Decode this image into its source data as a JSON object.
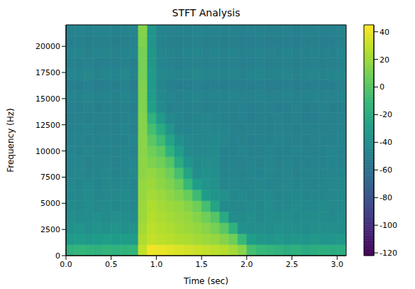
{
  "chart_data": {
    "type": "heatmap",
    "title": "STFT Analysis",
    "x_label": "Time (sec)",
    "y_label": "Frequency (Hz)",
    "xlim": [
      0,
      3.1
    ],
    "xticks": [
      {
        "value": 0,
        "label": "0.0"
      },
      0.5,
      {
        "value": 1,
        "label": "1.0"
      },
      1.5,
      {
        "value": 2,
        "label": "2.0"
      },
      2.5,
      {
        "value": 3,
        "label": "3.0"
      }
    ],
    "ylim": [
      0,
      22050
    ],
    "yticks": [
      0,
      2500,
      5000,
      7500,
      10000,
      12500,
      15000,
      17500,
      20000
    ],
    "x_bins": [
      0,
      0.1,
      0.2,
      0.3,
      0.4,
      0.5,
      0.6,
      0.7,
      0.8,
      0.9,
      1.0,
      1.1,
      1.2,
      1.3,
      1.4,
      1.5,
      1.6,
      1.7,
      1.8,
      1.9,
      2.0,
      2.1,
      2.2,
      2.3,
      2.4,
      2.5,
      2.6,
      2.7,
      2.8,
      2.9,
      3.0,
      3.1
    ],
    "y_bins": [
      0,
      1050,
      2100,
      3150,
      4200,
      5250,
      6300,
      7350,
      8400,
      9450,
      10500,
      11550,
      12600,
      13650,
      14700,
      15750,
      16800,
      17850,
      18900,
      19950,
      21000,
      22050
    ],
    "cells": [
      [
        -15,
        -12,
        -14,
        -16,
        -13,
        -15,
        -14,
        -12,
        30,
        42,
        40,
        38,
        36,
        34,
        32,
        30,
        28,
        26,
        22,
        15,
        -5,
        -10,
        -12,
        -15,
        -18,
        -16,
        -20,
        -18,
        -17,
        -19,
        -18
      ],
      [
        -32,
        -30,
        -33,
        -31,
        -29,
        -32,
        -30,
        -31,
        25,
        30,
        28,
        27,
        25,
        24,
        22,
        20,
        18,
        14,
        8,
        -10,
        -30,
        -34,
        -35,
        -33,
        -36,
        -34,
        -35,
        -33,
        -36,
        -35,
        -34
      ],
      [
        -38,
        -36,
        -39,
        -37,
        -38,
        -36,
        -38,
        -37,
        22,
        28,
        26,
        24,
        22,
        20,
        18,
        15,
        10,
        2,
        -15,
        -38,
        -40,
        -39,
        -41,
        -38,
        -40,
        -39,
        -41,
        -40,
        -39,
        -40,
        -41
      ],
      [
        -40,
        -42,
        -41,
        -39,
        -42,
        -40,
        -41,
        -42,
        20,
        26,
        24,
        22,
        20,
        18,
        14,
        8,
        0,
        -20,
        -41,
        -42,
        -40,
        -43,
        -41,
        -42,
        -40,
        -43,
        -42,
        -41,
        -42,
        -43,
        -41
      ],
      [
        -42,
        -43,
        -41,
        -44,
        -42,
        -43,
        -42,
        -44,
        20,
        25,
        22,
        20,
        18,
        14,
        8,
        -5,
        -25,
        -42,
        -43,
        -44,
        -42,
        -43,
        -41,
        -44,
        -43,
        -42,
        -44,
        -43,
        -42,
        -44,
        -43
      ],
      [
        -43,
        -44,
        -42,
        -45,
        -43,
        -44,
        -42,
        -45,
        18,
        22,
        20,
        16,
        12,
        6,
        -8,
        -30,
        -36,
        -38,
        -44,
        -43,
        -45,
        -44,
        -43,
        -45,
        -44,
        -43,
        -45,
        -44,
        -45,
        -44,
        -43
      ],
      [
        -44,
        -45,
        -43,
        -46,
        -44,
        -45,
        -44,
        -46,
        18,
        20,
        16,
        12,
        6,
        -10,
        -30,
        -36,
        -37,
        -45,
        -44,
        -46,
        -45,
        -44,
        -46,
        -45,
        -44,
        -46,
        -45,
        -46,
        -45,
        -44,
        -45
      ],
      [
        -45,
        -44,
        -46,
        -45,
        -44,
        -46,
        -45,
        -44,
        16,
        18,
        14,
        8,
        -5,
        -25,
        -40,
        -38,
        -39,
        -46,
        -45,
        -47,
        -45,
        -46,
        -44,
        -46,
        -45,
        -47,
        -46,
        -45,
        -46,
        -45,
        -46
      ],
      [
        -46,
        -45,
        -47,
        -46,
        -45,
        -47,
        -46,
        -45,
        16,
        12,
        8,
        0,
        -20,
        -35,
        -42,
        -40,
        -41,
        -47,
        -46,
        -48,
        -46,
        -47,
        -45,
        -47,
        -46,
        -48,
        -47,
        -46,
        -47,
        -46,
        -47
      ],
      [
        -46,
        -47,
        -45,
        -48,
        -46,
        -47,
        -45,
        -48,
        15,
        8,
        2,
        -15,
        -30,
        -42,
        -44,
        -43,
        -42,
        -47,
        -48,
        -46,
        -47,
        -48,
        -46,
        -47,
        -48,
        -46,
        -47,
        -48,
        -47,
        -46,
        -48
      ],
      [
        -47,
        -46,
        -48,
        -47,
        -46,
        -48,
        -47,
        -46,
        15,
        2,
        -8,
        -25,
        -38,
        -44,
        -45,
        -44,
        -43,
        -45,
        -48,
        -47,
        -49,
        -47,
        -48,
        -46,
        -48,
        -47,
        -49,
        -48,
        -47,
        -48,
        -47
      ],
      [
        -47,
        -48,
        -46,
        -49,
        -47,
        -48,
        -46,
        -49,
        14,
        -5,
        -20,
        -35,
        -45,
        -46,
        -45,
        -44,
        -45,
        -46,
        -48,
        -49,
        -47,
        -48,
        -49,
        -47,
        -48,
        -49,
        -47,
        -48,
        -49,
        -48,
        -47
      ],
      [
        -48,
        -47,
        -49,
        -48,
        -47,
        -49,
        -48,
        -47,
        14,
        -15,
        -32,
        -44,
        -46,
        -47,
        -46,
        -45,
        -46,
        -47,
        -49,
        -48,
        -50,
        -48,
        -49,
        -47,
        -49,
        -48,
        -50,
        -49,
        -48,
        -49,
        -48
      ],
      [
        -48,
        -49,
        -47,
        -50,
        -48,
        -49,
        -47,
        -50,
        12,
        -28,
        -42,
        -47,
        -48,
        -47,
        -48,
        -49,
        -48,
        -47,
        -49,
        -48,
        -50,
        -49,
        -48,
        -50,
        -49,
        -48,
        -50,
        -49,
        -48,
        -50,
        -49
      ],
      [
        -46,
        -47,
        -45,
        -48,
        -46,
        -47,
        -45,
        -48,
        12,
        -30,
        -43,
        -46,
        -47,
        -46,
        -45,
        -47,
        -46,
        -47,
        -46,
        -48,
        -47,
        -46,
        -48,
        -47,
        -46,
        -48,
        -47,
        -46,
        -48,
        -47,
        -46
      ],
      [
        -49,
        -50,
        -48,
        -51,
        -49,
        -50,
        -48,
        -51,
        12,
        -32,
        -45,
        -49,
        -50,
        -49,
        -48,
        -50,
        -49,
        -50,
        -49,
        -51,
        -50,
        -49,
        -51,
        -50,
        -49,
        -51,
        -50,
        -49,
        -51,
        -50,
        -49
      ],
      [
        -45,
        -46,
        -44,
        -47,
        -45,
        -46,
        -44,
        -47,
        10,
        -32,
        -44,
        -45,
        -46,
        -45,
        -44,
        -46,
        -45,
        -46,
        -45,
        -47,
        -46,
        -45,
        -47,
        -46,
        -45,
        -47,
        -46,
        -45,
        -47,
        -46,
        -45
      ],
      [
        -48,
        -49,
        -47,
        -50,
        -48,
        -49,
        -47,
        -50,
        10,
        -34,
        -46,
        -48,
        -49,
        -48,
        -47,
        -49,
        -48,
        -49,
        -48,
        -50,
        -49,
        -48,
        -50,
        -49,
        -48,
        -50,
        -49,
        -48,
        -50,
        -49,
        -48
      ],
      [
        -46,
        -45,
        -47,
        -46,
        -45,
        -47,
        -46,
        -45,
        10,
        -34,
        -45,
        -46,
        -47,
        -46,
        -45,
        -47,
        -46,
        -47,
        -46,
        -48,
        -47,
        -46,
        -48,
        -47,
        -46,
        -48,
        -47,
        -46,
        -48,
        -47,
        -46
      ],
      [
        -49,
        -48,
        -50,
        -49,
        -48,
        -50,
        -49,
        -48,
        12,
        -35,
        -47,
        -49,
        -50,
        -49,
        -48,
        -50,
        -49,
        -50,
        -49,
        -51,
        -50,
        -49,
        -51,
        -50,
        -49,
        -51,
        -50,
        -49,
        -51,
        -50,
        -49
      ],
      [
        -47,
        -46,
        -48,
        -47,
        -46,
        -48,
        -47,
        -46,
        14,
        -35,
        -46,
        -47,
        -48,
        -47,
        -46,
        -48,
        -47,
        -48,
        -47,
        -49,
        -48,
        -47,
        -49,
        -48,
        -47,
        -49,
        -48,
        -47,
        -49,
        -48,
        -47
      ]
    ],
    "colorbar_range": [
      -122,
      45
    ],
    "colorbar_ticks": [
      -120,
      -100,
      -80,
      -60,
      -40,
      -20,
      0,
      20,
      40
    ]
  }
}
